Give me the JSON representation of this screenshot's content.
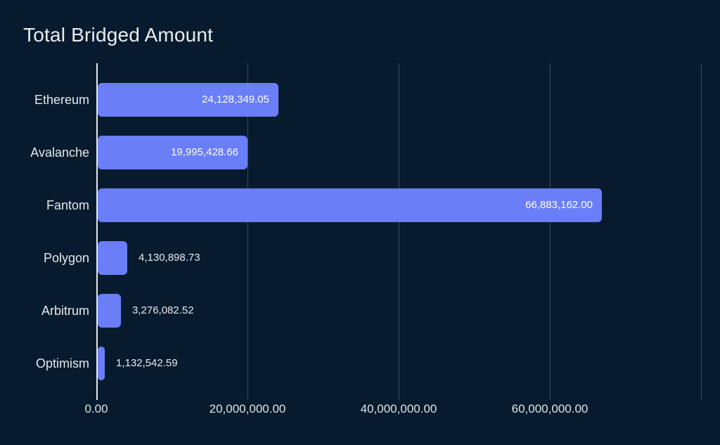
{
  "title": "Total Bridged Amount",
  "colors": {
    "background": "#081b2e",
    "bar_fill": "#6a7ef7",
    "title_text": "#e8ecef",
    "category_text": "#e4e9ed",
    "value_text_inside": "#ffffff",
    "value_text_outside": "#e6ebef",
    "gridline": "#3a4d61",
    "zero_axis_line": "#e4e8eb",
    "tick_text": "#dde4e9"
  },
  "chart_data": {
    "type": "bar",
    "orientation": "horizontal",
    "title": "Total Bridged Amount",
    "categories": [
      "Ethereum",
      "Avalanche",
      "Fantom",
      "Polygon",
      "Arbitrum",
      "Optimism"
    ],
    "values": [
      24128349.05,
      19995428.66,
      66883162.0,
      4130898.73,
      3276082.52,
      1132542.59
    ],
    "value_labels": [
      "24,128,349.05",
      "19,995,428.66",
      "66,883,162.00",
      "4,130,898.73",
      "3,276,082.52",
      "1,132,542.59"
    ],
    "xlim": [
      0,
      80000000
    ],
    "xticks": [
      {
        "value": 0,
        "label": "0.00"
      },
      {
        "value": 20000000,
        "label": "20,000,000.00"
      },
      {
        "value": 40000000,
        "label": "40,000,000.00"
      },
      {
        "value": 60000000,
        "label": "60,000,000.00"
      },
      {
        "value": 80000000,
        "label": ""
      }
    ],
    "grid": true,
    "legend": "none",
    "ylabel": "",
    "xlabel": ""
  }
}
